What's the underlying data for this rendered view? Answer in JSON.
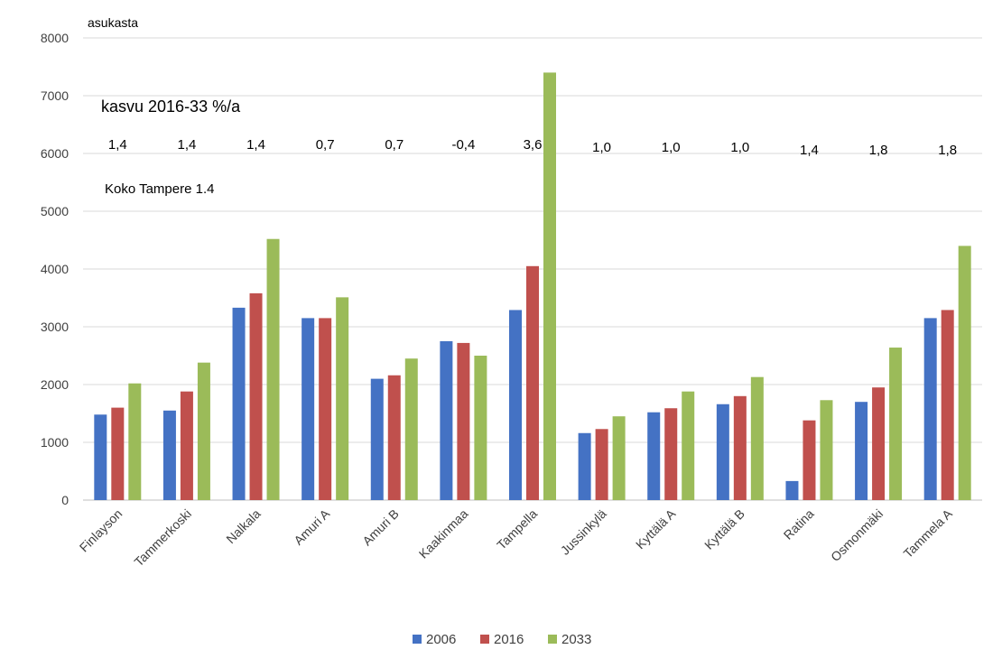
{
  "chart_data": {
    "type": "bar",
    "title": "",
    "xlabel": "",
    "ylabel": "asukasta",
    "ylim": [
      0,
      8000
    ],
    "yticks": [
      0,
      1000,
      2000,
      3000,
      4000,
      5000,
      6000,
      7000,
      8000
    ],
    "grid": true,
    "legend_position": "bottom",
    "categories": [
      "Finlayson",
      "Tammerkoski",
      "Nalkala",
      "Amuri A",
      "Amuri B",
      "Kaakinmaa",
      "Tampella",
      "Jussinkylä",
      "Kyttälä A",
      "Kyttälä B",
      "Ratina",
      "Osmonmäki",
      "Tammela A"
    ],
    "series": [
      {
        "name": "2006",
        "color": "#4472c4",
        "values": [
          1480,
          1550,
          3330,
          3150,
          2100,
          2750,
          3290,
          1160,
          1520,
          1660,
          330,
          1700,
          3150
        ]
      },
      {
        "name": "2016",
        "color": "#c0504d",
        "values": [
          1600,
          1880,
          3580,
          3150,
          2160,
          2720,
          4050,
          1230,
          1590,
          1800,
          1380,
          1950,
          3290
        ]
      },
      {
        "name": "2033",
        "color": "#9bbb59",
        "values": [
          2020,
          2380,
          4520,
          3510,
          2450,
          2500,
          7400,
          1450,
          1880,
          2130,
          1730,
          2640,
          4400
        ]
      }
    ],
    "annotations": {
      "growth_title": "kasvu 2016-33 %/a",
      "growth_values": [
        "1,4",
        "1,4",
        "1,4",
        "0,7",
        "0,7",
        "-0,4",
        "3,6",
        "1,0",
        "1,0",
        "1,0",
        "1,4",
        "1,8",
        "1,8"
      ],
      "total_note": "Koko Tampere 1.4"
    }
  }
}
